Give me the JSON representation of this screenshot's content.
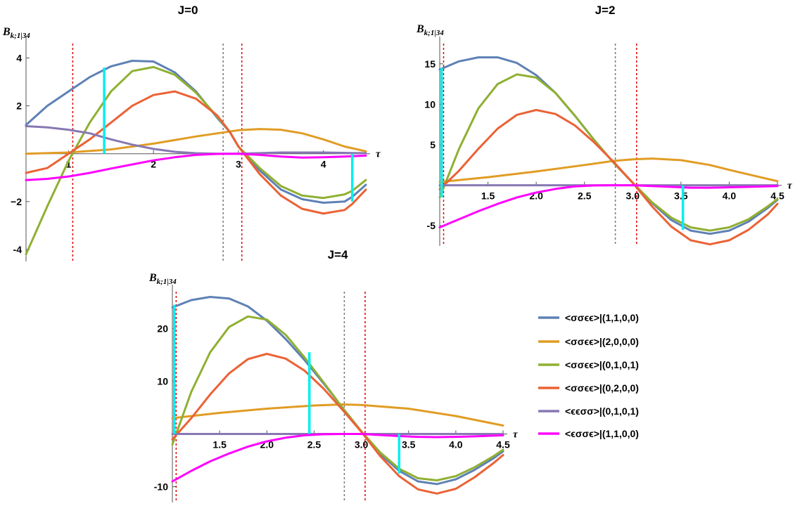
{
  "chart_data": [
    {
      "type": "line",
      "title": "J=0",
      "ylabel": "B",
      "ylabel_sub": "k;1|34",
      "xlabel": "τ",
      "xlim": [
        0.5,
        4.5
      ],
      "ylim": [
        -4.5,
        4.6
      ],
      "xticks": [
        1,
        2,
        3,
        4
      ],
      "xtick_labels": [
        "1",
        "2",
        "3",
        "4"
      ],
      "yticks": [
        -4,
        -2,
        2,
        4
      ],
      "ytick_labels": [
        "-4",
        "−2",
        "2",
        "4"
      ],
      "vlines": [
        {
          "x": 1.05,
          "style": "red-dotted"
        },
        {
          "x": 2.82,
          "style": "gray-dotted"
        },
        {
          "x": 3.04,
          "style": "red-dotted"
        }
      ],
      "cyan_segments": [
        {
          "x": 1.42,
          "y0": 0,
          "y1": 3.6
        },
        {
          "x": 4.34,
          "y0": 0,
          "y1": -2.0
        }
      ],
      "series": [
        {
          "name": "<σσϵϵ>|(1,1,0,0)",
          "x": [
            0.5,
            0.75,
            1.0,
            1.25,
            1.5,
            1.75,
            2.0,
            2.25,
            2.5,
            2.75,
            2.9,
            3.0,
            3.25,
            3.5,
            3.75,
            4.0,
            4.25,
            4.34,
            4.5
          ],
          "y": [
            1.2,
            2.0,
            2.6,
            3.2,
            3.65,
            3.88,
            3.85,
            3.4,
            2.6,
            1.5,
            0.9,
            0.3,
            -0.7,
            -1.5,
            -1.9,
            -2.05,
            -2.0,
            -1.8,
            -1.3
          ]
        },
        {
          "name": "<σσϵϵ>|(2,0,0,0)",
          "x": [
            0.5,
            1.0,
            1.5,
            2.0,
            2.5,
            3.0,
            3.25,
            3.5,
            3.75,
            4.0,
            4.25,
            4.5
          ],
          "y": [
            0,
            0.05,
            0.18,
            0.42,
            0.72,
            0.98,
            1.03,
            1.0,
            0.85,
            0.6,
            0.3,
            0.1
          ]
        },
        {
          "name": "<σσϵϵ>|(0,1,0,1)",
          "x": [
            0.5,
            0.75,
            1.0,
            1.25,
            1.5,
            1.75,
            2.0,
            2.25,
            2.5,
            2.75,
            2.9,
            3.0,
            3.25,
            3.5,
            3.75,
            4.0,
            4.25,
            4.34,
            4.5
          ],
          "y": [
            -4.2,
            -2.2,
            -0.3,
            1.3,
            2.6,
            3.45,
            3.62,
            3.3,
            2.55,
            1.55,
            0.9,
            0.3,
            -0.6,
            -1.35,
            -1.75,
            -1.85,
            -1.7,
            -1.55,
            -1.1
          ]
        },
        {
          "name": "<σσϵϵ>|(0,2,0,0)",
          "x": [
            0.5,
            0.75,
            1.0,
            1.25,
            1.5,
            1.75,
            2.0,
            2.25,
            2.5,
            2.75,
            2.9,
            3.0,
            3.25,
            3.5,
            3.75,
            4.0,
            4.25,
            4.34,
            4.5
          ],
          "y": [
            -0.8,
            -0.6,
            0.0,
            0.6,
            1.3,
            2.0,
            2.45,
            2.6,
            2.3,
            1.6,
            0.9,
            0.3,
            -0.85,
            -1.75,
            -2.3,
            -2.5,
            -2.35,
            -2.1,
            -1.5
          ]
        },
        {
          "name": "<ϵϵσσ>|(0,1,0,1)",
          "x": [
            0.5,
            0.75,
            1.0,
            1.25,
            1.5,
            1.75,
            2.0,
            2.25,
            2.5,
            2.75,
            3.0,
            3.5,
            4.0,
            4.5
          ],
          "y": [
            1.15,
            1.1,
            1.0,
            0.85,
            0.6,
            0.38,
            0.2,
            0.08,
            0.02,
            0,
            0,
            0.05,
            0.05,
            0.02
          ]
        },
        {
          "name": "<ϵσσϵ>|(1,1,0,0)",
          "x": [
            0.5,
            0.75,
            1.0,
            1.25,
            1.5,
            1.75,
            2.0,
            2.25,
            2.5,
            2.75,
            3.0,
            3.25,
            3.5,
            3.75,
            4.0,
            4.25,
            4.5
          ],
          "y": [
            -1.1,
            -1.05,
            -0.95,
            -0.8,
            -0.62,
            -0.45,
            -0.28,
            -0.15,
            -0.05,
            -0.01,
            0,
            -0.05,
            -0.12,
            -0.16,
            -0.15,
            -0.12,
            -0.08
          ]
        }
      ]
    },
    {
      "type": "line",
      "title": "J=2",
      "ylabel": "B",
      "ylabel_sub": "k;1|34",
      "xlabel": "τ",
      "xlim": [
        1.0,
        4.5
      ],
      "ylim": [
        -7.5,
        17.5
      ],
      "xticks": [
        1.5,
        2.0,
        2.5,
        3.0,
        3.5,
        4.0,
        4.5
      ],
      "xtick_labels": [
        "1.5",
        "2.0",
        "2.5",
        "3.0",
        "3.5",
        "4.0",
        "4.5"
      ],
      "yticks": [
        -5,
        5,
        10,
        15
      ],
      "ytick_labels": [
        "-5",
        "5",
        "10",
        "15"
      ],
      "vlines": [
        {
          "x": 1.04,
          "style": "red-dotted"
        },
        {
          "x": 2.82,
          "style": "gray-dotted"
        },
        {
          "x": 3.04,
          "style": "red-dotted"
        }
      ],
      "cyan_segments": [
        {
          "x": 1.02,
          "y0": -1.5,
          "y1": 14.5
        },
        {
          "x": 3.52,
          "y0": 0,
          "y1": -5.5
        }
      ],
      "series": [
        {
          "name": "<σσϵϵ>|(1,1,0,0)",
          "x": [
            1.0,
            1.2,
            1.4,
            1.6,
            1.8,
            2.0,
            2.2,
            2.4,
            2.6,
            2.8,
            3.0,
            3.2,
            3.4,
            3.6,
            3.8,
            4.0,
            4.2,
            4.4,
            4.5
          ],
          "y": [
            14.3,
            15.3,
            15.8,
            15.8,
            15.1,
            13.6,
            11.4,
            8.6,
            5.6,
            2.8,
            0.3,
            -2.2,
            -4.3,
            -5.6,
            -6.0,
            -5.6,
            -4.5,
            -2.8,
            -1.8
          ]
        },
        {
          "name": "<σσϵϵ>|(2,0,0,0)",
          "x": [
            1.0,
            1.5,
            2.0,
            2.5,
            2.8,
            3.0,
            3.2,
            3.5,
            3.8,
            4.0,
            4.25,
            4.5
          ],
          "y": [
            0.4,
            1.0,
            1.7,
            2.5,
            3.0,
            3.2,
            3.3,
            3.1,
            2.5,
            1.9,
            1.2,
            0.5
          ]
        },
        {
          "name": "<σσϵϵ>|(0,1,0,1)",
          "x": [
            1.0,
            1.2,
            1.4,
            1.6,
            1.8,
            2.0,
            2.2,
            2.4,
            2.6,
            2.8,
            3.0,
            3.2,
            3.4,
            3.6,
            3.8,
            4.0,
            4.2,
            4.4,
            4.5
          ],
          "y": [
            -1.5,
            4.5,
            9.5,
            12.5,
            13.7,
            13.3,
            11.4,
            8.6,
            5.6,
            2.8,
            0.3,
            -2.1,
            -4.0,
            -5.2,
            -5.6,
            -5.2,
            -4.2,
            -2.6,
            -1.7
          ]
        },
        {
          "name": "<σσϵϵ>|(0,2,0,0)",
          "x": [
            1.0,
            1.2,
            1.4,
            1.6,
            1.8,
            2.0,
            2.2,
            2.4,
            2.6,
            2.8,
            3.0,
            3.2,
            3.4,
            3.6,
            3.8,
            4.0,
            4.2,
            4.4,
            4.5
          ],
          "y": [
            -0.5,
            1.8,
            4.5,
            7.0,
            8.7,
            9.3,
            8.8,
            7.4,
            5.3,
            2.9,
            0.3,
            -2.6,
            -5.1,
            -6.8,
            -7.3,
            -6.8,
            -5.5,
            -3.6,
            -2.3
          ]
        },
        {
          "name": "<ϵϵσσ>|(0,1,0,1)",
          "x": [
            1.0,
            1.5,
            2.0,
            2.5,
            3.0,
            3.5,
            4.0,
            4.5
          ],
          "y": [
            0,
            0,
            0,
            0,
            0,
            0,
            0,
            0
          ]
        },
        {
          "name": "<ϵσσϵ>|(1,1,0,0)",
          "x": [
            1.0,
            1.2,
            1.4,
            1.6,
            1.8,
            2.0,
            2.2,
            2.4,
            2.6,
            2.8,
            3.0,
            3.2,
            3.4,
            3.6,
            3.8,
            4.0,
            4.2,
            4.5
          ],
          "y": [
            -5.2,
            -4.2,
            -3.2,
            -2.3,
            -1.5,
            -0.9,
            -0.45,
            -0.15,
            -0.03,
            0,
            0,
            -0.1,
            -0.2,
            -0.3,
            -0.3,
            -0.25,
            -0.2,
            -0.1
          ]
        }
      ]
    },
    {
      "type": "line",
      "title": "J=4",
      "ylabel": "B",
      "ylabel_sub": "k;1|34",
      "xlabel": "τ",
      "xlim": [
        1.0,
        4.5
      ],
      "ylim": [
        -13,
        27
      ],
      "xticks": [
        1.5,
        2.0,
        2.5,
        3.0,
        3.5,
        4.0,
        4.5
      ],
      "xtick_labels": [
        "1.5",
        "2.0",
        "2.5",
        "3.0",
        "3.5",
        "4.0",
        "4.5"
      ],
      "yticks": [
        -10,
        10,
        20
      ],
      "ytick_labels": [
        "-10",
        "10",
        "20"
      ],
      "vlines": [
        {
          "x": 1.04,
          "style": "red-dotted"
        },
        {
          "x": 2.82,
          "style": "gray-dotted"
        },
        {
          "x": 3.04,
          "style": "red-dotted"
        }
      ],
      "cyan_segments": [
        {
          "x": 1.02,
          "y0": 0,
          "y1": 24.5
        },
        {
          "x": 2.45,
          "y0": 0,
          "y1": 15.5
        },
        {
          "x": 3.4,
          "y0": 0,
          "y1": -7.5
        }
      ],
      "series": [
        {
          "name": "<σσϵϵ>|(1,1,0,0)",
          "x": [
            1.0,
            1.2,
            1.4,
            1.6,
            1.8,
            2.0,
            2.2,
            2.4,
            2.6,
            2.8,
            3.0,
            3.2,
            3.4,
            3.6,
            3.8,
            4.0,
            4.2,
            4.4,
            4.5
          ],
          "y": [
            24.0,
            25.4,
            26.0,
            25.7,
            24.2,
            21.5,
            18.0,
            14.0,
            9.6,
            5.0,
            0.5,
            -3.8,
            -7.0,
            -9.0,
            -9.5,
            -8.6,
            -6.8,
            -4.6,
            -3.3
          ]
        },
        {
          "name": "<σσϵϵ>|(2,0,0,0)",
          "x": [
            1.0,
            1.5,
            2.0,
            2.5,
            2.8,
            3.0,
            3.5,
            4.0,
            4.5
          ],
          "y": [
            3.0,
            4.0,
            4.8,
            5.4,
            5.6,
            5.5,
            4.8,
            3.4,
            1.6
          ]
        },
        {
          "name": "<σσϵϵ>|(0,1,0,1)",
          "x": [
            1.0,
            1.2,
            1.4,
            1.6,
            1.8,
            2.0,
            2.2,
            2.4,
            2.6,
            2.8,
            3.0,
            3.2,
            3.4,
            3.6,
            3.8,
            4.0,
            4.2,
            4.4,
            4.5
          ],
          "y": [
            -2.0,
            8.0,
            15.5,
            20.3,
            22.3,
            21.7,
            18.8,
            14.5,
            9.8,
            5.0,
            0.5,
            -3.5,
            -6.6,
            -8.4,
            -8.8,
            -8.0,
            -6.3,
            -4.2,
            -3.0
          ]
        },
        {
          "name": "<σσϵϵ>|(0,2,0,0)",
          "x": [
            1.0,
            1.2,
            1.4,
            1.6,
            1.8,
            2.0,
            2.2,
            2.4,
            2.6,
            2.8,
            3.0,
            3.2,
            3.4,
            3.6,
            3.8,
            4.0,
            4.2,
            4.4,
            4.5
          ],
          "y": [
            -1.0,
            3.0,
            7.5,
            11.5,
            14.2,
            15.2,
            14.3,
            12.0,
            8.6,
            4.6,
            0.4,
            -4.2,
            -8.0,
            -10.5,
            -11.3,
            -10.4,
            -8.2,
            -5.5,
            -4.0
          ]
        },
        {
          "name": "<ϵϵσσ>|(0,1,0,1)",
          "x": [
            1.0,
            1.5,
            2.0,
            2.5,
            3.0,
            3.5,
            4.0,
            4.5
          ],
          "y": [
            0,
            0,
            0,
            0,
            0,
            0,
            0,
            0
          ]
        },
        {
          "name": "<ϵσσϵ>|(1,1,0,0)",
          "x": [
            1.0,
            1.2,
            1.4,
            1.6,
            1.8,
            2.0,
            2.2,
            2.4,
            2.6,
            2.8,
            3.0,
            3.2,
            3.4,
            3.6,
            3.8,
            4.0,
            4.2,
            4.5
          ],
          "y": [
            -9.0,
            -7.0,
            -5.2,
            -3.7,
            -2.4,
            -1.4,
            -0.7,
            -0.25,
            -0.05,
            0,
            0,
            -0.2,
            -0.4,
            -0.55,
            -0.6,
            -0.55,
            -0.45,
            -0.25
          ]
        }
      ]
    }
  ],
  "colors": {
    "series": [
      "#5e81b5",
      "#e19c24",
      "#8fb032",
      "#eb6235",
      "#8778b3",
      "#ff00ff"
    ],
    "cyan": "#00f0f0",
    "red_dotted": "#e00000",
    "gray_dotted": "#777777"
  },
  "legend": {
    "position": "right",
    "items": [
      "<σσϵϵ>|(1,1,0,0)",
      "<σσϵϵ>|(2,0,0,0)",
      "<σσϵϵ>|(0,1,0,1)",
      "<σσϵϵ>|(0,2,0,0)",
      "<ϵϵσσ>|(0,1,0,1)",
      "<ϵσσϵ>|(1,1,0,0)"
    ]
  }
}
